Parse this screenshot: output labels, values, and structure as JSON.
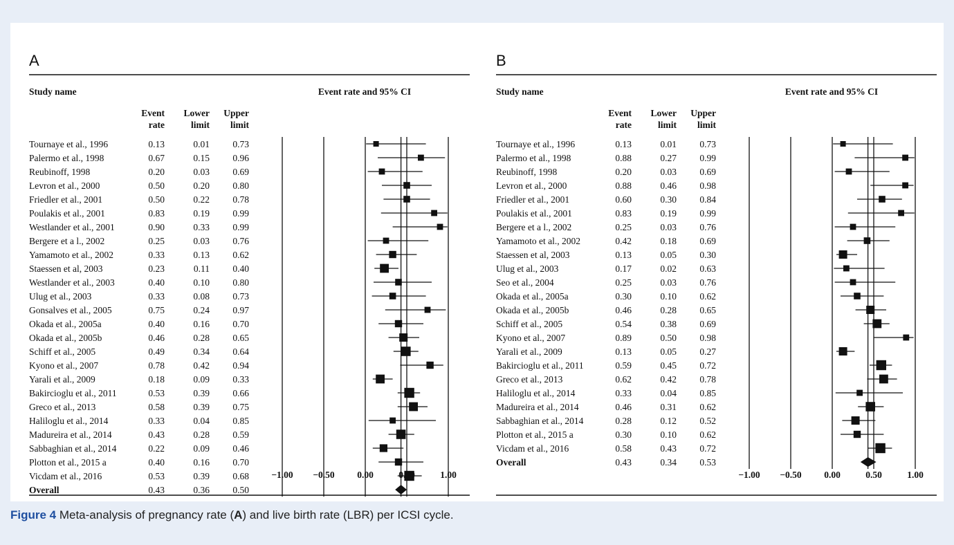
{
  "caption": {
    "figure_label": "Figure 4",
    "text_1": " Meta-analysis of pregnancy rate (",
    "ref_a": "A",
    "text_2": ") and live birth rate (LBR) per ICSI cycle."
  },
  "table_headers": {
    "study_name": "Study name",
    "ci_title": "Event rate and 95% CI",
    "event_1": "Event",
    "event_2": "rate",
    "lower_1": "Lower",
    "lower_2": "limit",
    "upper_1": "Upper",
    "upper_2": "limit"
  },
  "colors": {
    "ink": "#111111",
    "caption_blue": "#1f4fa0",
    "background": "#e8eef7"
  },
  "chart_data": [
    {
      "type": "forest",
      "panel": "A",
      "xlim": [
        -1.0,
        1.0
      ],
      "ticks": [
        "-1.00",
        "-0.50",
        "0.00",
        "0.50",
        "1.00"
      ],
      "tick_values": [
        -1.0,
        -0.5,
        0.0,
        0.5,
        1.0
      ],
      "studies": [
        {
          "name": "Tournaye et al., 1996",
          "rate": "0.13",
          "lower": "0.01",
          "upper": "0.73",
          "weight": 1
        },
        {
          "name": "Palermo et al., 1998",
          "rate": "0.67",
          "lower": "0.15",
          "upper": "0.96",
          "weight": 1.1
        },
        {
          "name": "Reubinoff, 1998",
          "rate": "0.20",
          "lower": "0.03",
          "upper": "0.69",
          "weight": 1.1
        },
        {
          "name": "Levron et al., 2000",
          "rate": "0.50",
          "lower": "0.20",
          "upper": "0.80",
          "weight": 1.2
        },
        {
          "name": "Friedler et al., 2001",
          "rate": "0.50",
          "lower": "0.22",
          "upper": "0.78",
          "weight": 1.2
        },
        {
          "name": "Poulakis et al., 2001",
          "rate": "0.83",
          "lower": "0.19",
          "upper": "0.99",
          "weight": 1.1
        },
        {
          "name": "Westlander et al., 2001",
          "rate": "0.90",
          "lower": "0.33",
          "upper": "0.99",
          "weight": 1.1
        },
        {
          "name": "Bergere et a l., 2002",
          "rate": "0.25",
          "lower": "0.03",
          "upper": "0.76",
          "weight": 1.1
        },
        {
          "name": "Yamamoto et al., 2002",
          "rate": "0.33",
          "lower": "0.13",
          "upper": "0.62",
          "weight": 1.3
        },
        {
          "name": "Staessen et al, 2003",
          "rate": "0.23",
          "lower": "0.11",
          "upper": "0.40",
          "weight": 1.6
        },
        {
          "name": "Westlander et al., 2003",
          "rate": "0.40",
          "lower": "0.10",
          "upper": "0.80",
          "weight": 1.2
        },
        {
          "name": "Ulug et al., 2003",
          "rate": "0.33",
          "lower": "0.08",
          "upper": "0.73",
          "weight": 1.2
        },
        {
          "name": "Gonsalves et al., 2005",
          "rate": "0.75",
          "lower": "0.24",
          "upper": "0.97",
          "weight": 1.1
        },
        {
          "name": "Okada et al., 2005a",
          "rate": "0.40",
          "lower": "0.16",
          "upper": "0.70",
          "weight": 1.3
        },
        {
          "name": "Okada et al., 2005b",
          "rate": "0.46",
          "lower": "0.28",
          "upper": "0.65",
          "weight": 1.5
        },
        {
          "name": "Schiff et al., 2005",
          "rate": "0.49",
          "lower": "0.34",
          "upper": "0.64",
          "weight": 1.7
        },
        {
          "name": "Kyono et al., 2007",
          "rate": "0.78",
          "lower": "0.42",
          "upper": "0.94",
          "weight": 1.3
        },
        {
          "name": "Yarali et al., 2009",
          "rate": "0.18",
          "lower": "0.09",
          "upper": "0.33",
          "weight": 1.6
        },
        {
          "name": "Bakircioglu et al., 2011",
          "rate": "0.53",
          "lower": "0.39",
          "upper": "0.66",
          "weight": 1.8
        },
        {
          "name": "Greco et al., 2013",
          "rate": "0.58",
          "lower": "0.39",
          "upper": "0.75",
          "weight": 1.6
        },
        {
          "name": "Haliloglu et al., 2014",
          "rate": "0.33",
          "lower": "0.04",
          "upper": "0.85",
          "weight": 1.1
        },
        {
          "name": "Madureira et al., 2014",
          "rate": "0.43",
          "lower": "0.28",
          "upper": "0.59",
          "weight": 1.7
        },
        {
          "name": "Sabbaghian et al., 2014",
          "rate": "0.22",
          "lower": "0.09",
          "upper": "0.46",
          "weight": 1.4
        },
        {
          "name": "Plotton et al., 2015 a",
          "rate": "0.40",
          "lower": "0.16",
          "upper": "0.70",
          "weight": 1.3
        },
        {
          "name": "Vicdam et al., 2016",
          "rate": "0.53",
          "lower": "0.39",
          "upper": "0.68",
          "weight": 1.8
        }
      ],
      "overall": {
        "name": "Overall",
        "rate": "0.43",
        "lower": "0.36",
        "upper": "0.50"
      }
    },
    {
      "type": "forest",
      "panel": "B",
      "xlim": [
        -1.0,
        1.0
      ],
      "ticks": [
        "-1.00",
        "-0.50",
        "0.00",
        "0.50",
        "1.00"
      ],
      "tick_values": [
        -1.0,
        -0.5,
        0.0,
        0.5,
        1.0
      ],
      "studies": [
        {
          "name": "Tournaye et al., 1996",
          "rate": "0.13",
          "lower": "0.01",
          "upper": "0.73",
          "weight": 1
        },
        {
          "name": "Palermo et al., 1998",
          "rate": "0.88",
          "lower": "0.27",
          "upper": "0.99",
          "weight": 1.1
        },
        {
          "name": "Reubinoff, 1998",
          "rate": "0.20",
          "lower": "0.03",
          "upper": "0.69",
          "weight": 1.1
        },
        {
          "name": "Levron et al., 2000",
          "rate": "0.88",
          "lower": "0.46",
          "upper": "0.98",
          "weight": 1.1
        },
        {
          "name": "Friedler et al., 2001",
          "rate": "0.60",
          "lower": "0.30",
          "upper": "0.84",
          "weight": 1.2
        },
        {
          "name": "Poulakis et al., 2001",
          "rate": "0.83",
          "lower": "0.19",
          "upper": "0.99",
          "weight": 1.1
        },
        {
          "name": "Bergere et a l., 2002",
          "rate": "0.25",
          "lower": "0.03",
          "upper": "0.76",
          "weight": 1.1
        },
        {
          "name": "Yamamoto et al., 2002",
          "rate": "0.42",
          "lower": "0.18",
          "upper": "0.69",
          "weight": 1.2
        },
        {
          "name": "Staessen et al,  2003",
          "rate": "0.13",
          "lower": "0.05",
          "upper": "0.30",
          "weight": 1.5
        },
        {
          "name": "Ulug et al., 2003",
          "rate": "0.17",
          "lower": "0.02",
          "upper": "0.63",
          "weight": 1.1
        },
        {
          "name": "Seo et al., 2004",
          "rate": "0.25",
          "lower": "0.03",
          "upper": "0.76",
          "weight": 1.1
        },
        {
          "name": "Okada et al., 2005a",
          "rate": "0.30",
          "lower": "0.10",
          "upper": "0.62",
          "weight": 1.2
        },
        {
          "name": "Okada et al., 2005b",
          "rate": "0.46",
          "lower": "0.28",
          "upper": "0.65",
          "weight": 1.5
        },
        {
          "name": "Schiff et al., 2005",
          "rate": "0.54",
          "lower": "0.38",
          "upper": "0.69",
          "weight": 1.6
        },
        {
          "name": "Kyono et al., 2007",
          "rate": "0.89",
          "lower": "0.50",
          "upper": "0.98",
          "weight": 1.1
        },
        {
          "name": "Yarali et al., 2009",
          "rate": "0.13",
          "lower": "0.05",
          "upper": "0.27",
          "weight": 1.5
        },
        {
          "name": "Bakircioglu et al., 2011",
          "rate": "0.59",
          "lower": "0.45",
          "upper": "0.72",
          "weight": 1.8
        },
        {
          "name": "Greco et al., 2013",
          "rate": "0.62",
          "lower": "0.42",
          "upper": "0.78",
          "weight": 1.6
        },
        {
          "name": "Haliloglu et al., 2014",
          "rate": "0.33",
          "lower": "0.04",
          "upper": "0.85",
          "weight": 1.1
        },
        {
          "name": "Madureira et al., 2014",
          "rate": "0.46",
          "lower": "0.31",
          "upper": "0.62",
          "weight": 1.7
        },
        {
          "name": "Sabbaghian et al., 2014",
          "rate": "0.28",
          "lower": "0.12",
          "upper": "0.52",
          "weight": 1.5
        },
        {
          "name": "Plotton et al., 2015 a",
          "rate": "0.30",
          "lower": "0.10",
          "upper": "0.62",
          "weight": 1.3
        },
        {
          "name": "Vicdam et al., 2016",
          "rate": "0.58",
          "lower": "0.43",
          "upper": "0.72",
          "weight": 1.8
        }
      ],
      "overall": {
        "name": "Overall",
        "rate": "0.43",
        "lower": "0.34",
        "upper": "0.53"
      }
    }
  ]
}
